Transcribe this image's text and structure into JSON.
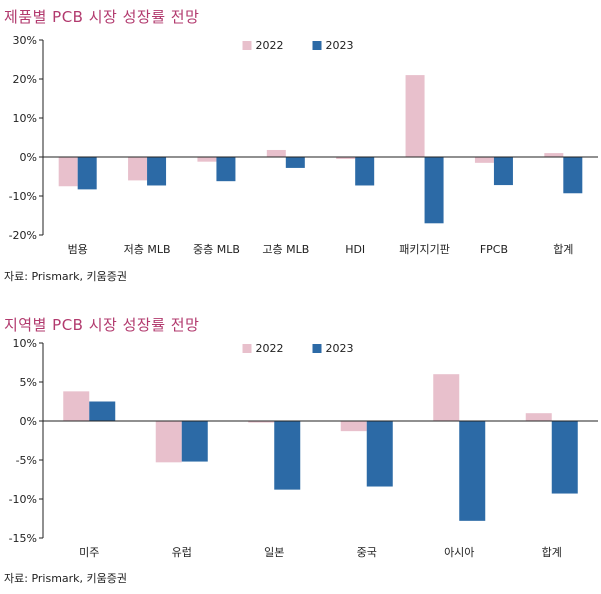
{
  "colors": {
    "y2022": "#e8c0cc",
    "y2023": "#2c6aa6",
    "title": "#b23a6e",
    "axis": "#222222"
  },
  "chart_data": [
    {
      "type": "bar",
      "title": "제품별 PCB 시장 성장률 전망",
      "source": "자료: Prismark, 키움증권",
      "categories": [
        "범용",
        "저층 MLB",
        "중층 MLB",
        "고층 MLB",
        "HDI",
        "패키지기판",
        "FPCB",
        "합계"
      ],
      "series": [
        {
          "name": "2022",
          "values": [
            -7.5,
            -6.0,
            -1.2,
            1.8,
            -0.5,
            21.0,
            -1.5,
            1.0
          ]
        },
        {
          "name": "2023",
          "values": [
            -8.3,
            -7.3,
            -6.2,
            -2.8,
            -7.3,
            -17.0,
            -7.2,
            -9.3
          ]
        }
      ],
      "ylim": [
        -20,
        30
      ],
      "yticks": [
        30,
        20,
        10,
        0,
        -10,
        -20
      ],
      "ytick_labels": [
        "30%",
        "20%",
        "10%",
        "0%",
        "-10%",
        "-20%"
      ],
      "legend": "top-center",
      "xlabel": "",
      "ylabel": ""
    },
    {
      "type": "bar",
      "title": "지역별 PCB 시장 성장률 전망",
      "source": "자료: Prismark, 키움증권",
      "categories": [
        "미주",
        "유럽",
        "일본",
        "중국",
        "아시아",
        "합계"
      ],
      "series": [
        {
          "name": "2022",
          "values": [
            3.8,
            -5.3,
            -0.2,
            -1.3,
            6.0,
            1.0
          ]
        },
        {
          "name": "2023",
          "values": [
            2.5,
            -5.2,
            -8.8,
            -8.4,
            -12.8,
            -9.3
          ]
        }
      ],
      "ylim": [
        -15,
        10
      ],
      "yticks": [
        10,
        5,
        0,
        -5,
        -10,
        -15
      ],
      "ytick_labels": [
        "10%",
        "5%",
        "0%",
        "-5%",
        "-10%",
        "-15%"
      ],
      "legend": "top-center",
      "xlabel": "",
      "ylabel": ""
    }
  ]
}
